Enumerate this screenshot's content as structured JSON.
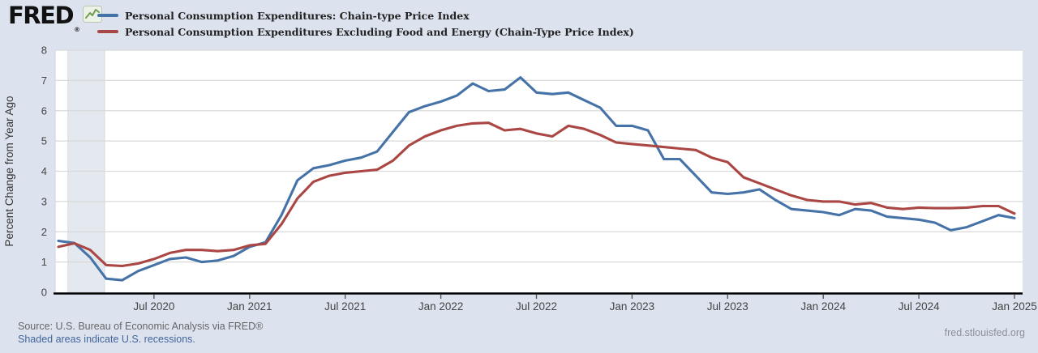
{
  "header": {
    "logo_text": "FRED",
    "logo_reg": "®",
    "legend": [
      {
        "label": "Personal Consumption Expenditures: Chain-type Price Index",
        "color": "#4572a7"
      },
      {
        "label": "Personal Consumption Expenditures Excluding Food and Energy (Chain-Type Price Index)",
        "color": "#aa4643"
      }
    ]
  },
  "footer": {
    "source": "Source: U.S. Bureau of Economic Analysis via FRED®",
    "recession_note": "Shaded areas indicate U.S. recessions.",
    "site": "fred.stlouisfed.org"
  },
  "chart_data": {
    "type": "line",
    "ylabel": "Percent Change from Year Ago",
    "xlabel": "",
    "ylim": [
      0,
      8
    ],
    "yticks": [
      0,
      1,
      2,
      3,
      4,
      5,
      6,
      7,
      8
    ],
    "grid": "horizontal",
    "legend_position": "top-left",
    "plot_bg": "#ffffff",
    "page_bg": "#dde3ee",
    "gridline_color": "#d9d9d9",
    "recession_band_color": "#e4e9f0",
    "recession_shading": {
      "start": "2020-02",
      "end": "2020-04"
    },
    "x_ticks": [
      {
        "label": "Jul 2020",
        "month_index": 6
      },
      {
        "label": "Jan 2021",
        "month_index": 12
      },
      {
        "label": "Jul 2021",
        "month_index": 18
      },
      {
        "label": "Jan 2022",
        "month_index": 24
      },
      {
        "label": "Jul 2022",
        "month_index": 30
      },
      {
        "label": "Jan 2023",
        "month_index": 36
      },
      {
        "label": "Jul 2023",
        "month_index": 42
      },
      {
        "label": "Jan 2024",
        "month_index": 48
      },
      {
        "label": "Jul 2024",
        "month_index": 54
      },
      {
        "label": "Jan 2025",
        "month_index": 60
      }
    ],
    "months": [
      "2020-01",
      "2020-02",
      "2020-03",
      "2020-04",
      "2020-05",
      "2020-06",
      "2020-07",
      "2020-08",
      "2020-09",
      "2020-10",
      "2020-11",
      "2020-12",
      "2021-01",
      "2021-02",
      "2021-03",
      "2021-04",
      "2021-05",
      "2021-06",
      "2021-07",
      "2021-08",
      "2021-09",
      "2021-10",
      "2021-11",
      "2021-12",
      "2022-01",
      "2022-02",
      "2022-03",
      "2022-04",
      "2022-05",
      "2022-06",
      "2022-07",
      "2022-08",
      "2022-09",
      "2022-10",
      "2022-11",
      "2022-12",
      "2023-01",
      "2023-02",
      "2023-03",
      "2023-04",
      "2023-05",
      "2023-06",
      "2023-07",
      "2023-08",
      "2023-09",
      "2023-10",
      "2023-11",
      "2023-12",
      "2024-01",
      "2024-02",
      "2024-03",
      "2024-04",
      "2024-05",
      "2024-06",
      "2024-07",
      "2024-08",
      "2024-09",
      "2024-10",
      "2024-11",
      "2024-12",
      "2025-01"
    ],
    "series": [
      {
        "name": "Personal Consumption Expenditures: Chain-type Price Index",
        "color": "#4572a7",
        "values": [
          1.7,
          1.63,
          1.15,
          0.45,
          0.4,
          0.7,
          0.9,
          1.1,
          1.15,
          1.0,
          1.05,
          1.2,
          1.5,
          1.65,
          2.55,
          3.7,
          4.1,
          4.2,
          4.35,
          4.45,
          4.65,
          5.3,
          5.95,
          6.15,
          6.3,
          6.5,
          6.9,
          6.65,
          6.7,
          7.1,
          6.6,
          6.55,
          6.6,
          6.35,
          6.1,
          5.5,
          5.5,
          5.35,
          4.4,
          4.4,
          3.85,
          3.3,
          3.25,
          3.3,
          3.4,
          3.05,
          2.75,
          2.7,
          2.65,
          2.55,
          2.75,
          2.7,
          2.5,
          2.45,
          2.4,
          2.3,
          2.05,
          2.15,
          2.35,
          2.55,
          2.45
        ]
      },
      {
        "name": "Personal Consumption Expenditures Excluding Food and Energy (Chain-Type Price Index)",
        "color": "#aa4643",
        "values": [
          1.5,
          1.62,
          1.4,
          0.9,
          0.87,
          0.95,
          1.1,
          1.3,
          1.4,
          1.4,
          1.36,
          1.4,
          1.55,
          1.6,
          2.25,
          3.1,
          3.65,
          3.85,
          3.95,
          4.0,
          4.05,
          4.35,
          4.85,
          5.15,
          5.35,
          5.5,
          5.58,
          5.6,
          5.35,
          5.4,
          5.25,
          5.15,
          5.5,
          5.4,
          5.2,
          4.95,
          4.9,
          4.85,
          4.8,
          4.75,
          4.7,
          4.45,
          4.3,
          3.8,
          3.6,
          3.4,
          3.2,
          3.05,
          3.0,
          3.0,
          2.9,
          2.95,
          2.8,
          2.75,
          2.8,
          2.78,
          2.78,
          2.8,
          2.85,
          2.85,
          2.6
        ]
      }
    ]
  }
}
